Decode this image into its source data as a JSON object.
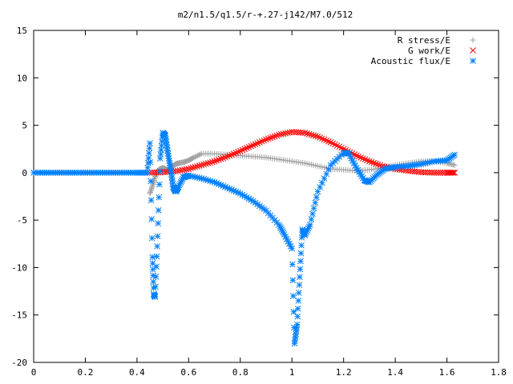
{
  "chart_data": {
    "type": "scatter",
    "title": "m2/n1.5/q1.5/r-+.27-j142/M7.0/512",
    "xlabel": "",
    "ylabel": "",
    "xlim": [
      0,
      1.8
    ],
    "ylim": [
      -20,
      15
    ],
    "xticks": [
      0,
      0.2,
      0.4,
      0.6,
      0.8,
      1,
      1.2,
      1.4,
      1.6,
      1.8
    ],
    "yticks": [
      -20,
      -15,
      -10,
      -5,
      0,
      5,
      10,
      15
    ],
    "xtick_labels": [
      "0",
      "0.2",
      "0.4",
      "0.6",
      "0.8",
      "1",
      "1.2",
      "1.4",
      "1.6",
      "1.8"
    ],
    "ytick_labels": [
      "-20",
      "-15",
      "-10",
      "-5",
      "0",
      "5",
      "10",
      "15"
    ],
    "grid": false,
    "legend_position": "top-right",
    "series": [
      {
        "name": "R stress/E",
        "marker": "plus",
        "color": "#a0a0a0",
        "x": [
          0.45,
          0.46,
          0.47,
          0.48,
          0.49,
          0.5,
          0.51,
          0.52,
          0.53,
          0.54,
          0.55,
          0.56,
          0.58,
          0.6,
          0.62,
          0.65,
          0.7,
          0.75,
          0.8,
          0.85,
          0.9,
          0.95,
          1.0,
          1.05,
          1.1,
          1.15,
          1.2,
          1.25,
          1.3,
          1.35,
          1.4,
          1.45,
          1.5,
          1.55,
          1.6,
          1.63
        ],
        "y": [
          -2.2,
          -1.4,
          -0.5,
          0.2,
          0.4,
          0.5,
          0.4,
          0.3,
          0.5,
          0.7,
          0.9,
          1.0,
          1.1,
          1.3,
          1.6,
          2.0,
          2.0,
          1.9,
          1.8,
          1.7,
          1.6,
          1.4,
          1.2,
          1.0,
          0.7,
          0.4,
          0.3,
          0.2,
          0.3,
          0.5,
          0.8,
          1.0,
          1.2,
          1.2,
          1.0,
          0.8
        ]
      },
      {
        "name": "G work/E",
        "marker": "cross",
        "color": "#ff0000",
        "x": [
          0.45,
          0.5,
          0.55,
          0.6,
          0.65,
          0.7,
          0.75,
          0.8,
          0.85,
          0.9,
          0.95,
          1.0,
          1.05,
          1.1,
          1.15,
          1.2,
          1.25,
          1.3,
          1.35,
          1.4,
          1.45,
          1.5,
          1.55,
          1.6,
          1.63
        ],
        "y": [
          0.0,
          0.05,
          0.15,
          0.4,
          0.8,
          1.2,
          1.7,
          2.3,
          2.9,
          3.5,
          4.0,
          4.3,
          4.2,
          3.8,
          3.2,
          2.5,
          1.8,
          1.2,
          0.7,
          0.4,
          0.2,
          0.05,
          0.0,
          0.0,
          0.0
        ]
      },
      {
        "name": "Acoustic flux/E",
        "marker": "star",
        "color": "#0080ff",
        "x": [
          0,
          0.05,
          0.1,
          0.15,
          0.2,
          0.25,
          0.3,
          0.35,
          0.4,
          0.44,
          0.45,
          0.46,
          0.465,
          0.47,
          0.48,
          0.49,
          0.5,
          0.51,
          0.52,
          0.53,
          0.54,
          0.55,
          0.56,
          0.58,
          0.6,
          0.65,
          0.7,
          0.75,
          0.8,
          0.85,
          0.9,
          0.95,
          0.97,
          1.0,
          1.01,
          1.02,
          1.03,
          1.04,
          1.05,
          1.07,
          1.1,
          1.15,
          1.2,
          1.22,
          1.25,
          1.28,
          1.3,
          1.33,
          1.36,
          1.4,
          1.45,
          1.5,
          1.55,
          1.6,
          1.63
        ],
        "y": [
          0,
          0,
          0,
          0,
          0,
          0,
          0,
          0,
          0,
          0,
          3.1,
          -8.9,
          -12.8,
          -13.1,
          -6.7,
          1.5,
          4.2,
          3.9,
          2.0,
          0.5,
          -1.5,
          -2.0,
          -1.5,
          -0.5,
          -0.3,
          -0.6,
          -1.0,
          -1.6,
          -2.2,
          -3.0,
          -4.0,
          -5.5,
          -6.5,
          -8.0,
          -18.0,
          -16.0,
          -11.0,
          -6.0,
          -6.6,
          -5.5,
          -2.0,
          0.8,
          2.1,
          2.0,
          0.5,
          -0.8,
          -1.0,
          -0.2,
          0.4,
          0.6,
          0.7,
          0.9,
          1.2,
          1.3,
          1.9
        ]
      }
    ]
  }
}
